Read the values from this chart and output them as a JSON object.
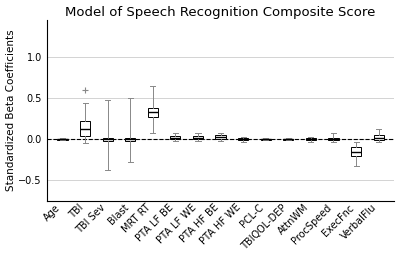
{
  "title": "Model of Speech Recognition Composite Score",
  "ylabel": "Standardized Beta Coefficients",
  "categories": [
    "Age",
    "TBI",
    "TBI Sev",
    "Blast",
    "MRT RT",
    "PTA LF BE",
    "PTA LF WE",
    "PTA HF BE",
    "PTA HF WE",
    "PCL-C",
    "TBIQOL-DEP",
    "AttnWM",
    "ProcSpeed",
    "ExecFnc",
    "VerbalFlu"
  ],
  "ylim": [
    -0.75,
    1.45
  ],
  "yticks": [
    -0.5,
    0.0,
    0.5,
    1.0
  ],
  "boxes": [
    {
      "med": 0.0,
      "q1": -0.005,
      "q3": 0.005,
      "whislo": -0.015,
      "whishi": 0.015,
      "fliers": []
    },
    {
      "med": 0.12,
      "q1": 0.04,
      "q3": 0.22,
      "whislo": -0.05,
      "whishi": 0.44,
      "fliers": [
        0.6
      ]
    },
    {
      "med": 0.0,
      "q1": -0.02,
      "q3": 0.02,
      "whislo": -0.37,
      "whishi": 0.48,
      "fliers": []
    },
    {
      "med": 0.0,
      "q1": -0.02,
      "q3": 0.02,
      "whislo": -0.28,
      "whishi": 0.5,
      "fliers": []
    },
    {
      "med": 0.33,
      "q1": 0.27,
      "q3": 0.38,
      "whislo": 0.08,
      "whishi": 0.65,
      "fliers": []
    },
    {
      "med": 0.02,
      "q1": 0.0,
      "q3": 0.04,
      "whislo": -0.02,
      "whishi": 0.07,
      "fliers": []
    },
    {
      "med": 0.02,
      "q1": 0.0,
      "q3": 0.04,
      "whislo": -0.02,
      "whishi": 0.07,
      "fliers": []
    },
    {
      "med": 0.03,
      "q1": 0.0,
      "q3": 0.05,
      "whislo": -0.02,
      "whishi": 0.08,
      "fliers": []
    },
    {
      "med": 0.0,
      "q1": -0.01,
      "q3": 0.01,
      "whislo": -0.03,
      "whishi": 0.03,
      "fliers": []
    },
    {
      "med": 0.0,
      "q1": -0.005,
      "q3": 0.005,
      "whislo": -0.015,
      "whishi": 0.015,
      "fliers": []
    },
    {
      "med": 0.0,
      "q1": -0.005,
      "q3": 0.005,
      "whislo": -0.015,
      "whishi": 0.015,
      "fliers": []
    },
    {
      "med": 0.0,
      "q1": -0.01,
      "q3": 0.01,
      "whislo": -0.03,
      "whishi": 0.03,
      "fliers": []
    },
    {
      "med": 0.0,
      "q1": -0.01,
      "q3": 0.02,
      "whislo": -0.03,
      "whishi": 0.07,
      "fliers": []
    },
    {
      "med": -0.15,
      "q1": -0.2,
      "q3": -0.1,
      "whislo": -0.32,
      "whishi": -0.04,
      "fliers": []
    },
    {
      "med": 0.02,
      "q1": -0.01,
      "q3": 0.05,
      "whislo": -0.03,
      "whishi": 0.12,
      "fliers": []
    }
  ],
  "box_color": "white",
  "median_color": "black",
  "whisker_color": "#888888",
  "cap_color": "#888888",
  "box_edge_color": "black",
  "flier_color": "#888888",
  "bg_color": "white",
  "grid_color": "#cccccc",
  "hline_color": "black",
  "hline_style": "--",
  "title_fontsize": 9.5,
  "label_fontsize": 7.5,
  "tick_fontsize": 7.0,
  "box_width": 0.45,
  "linewidth": 0.7
}
